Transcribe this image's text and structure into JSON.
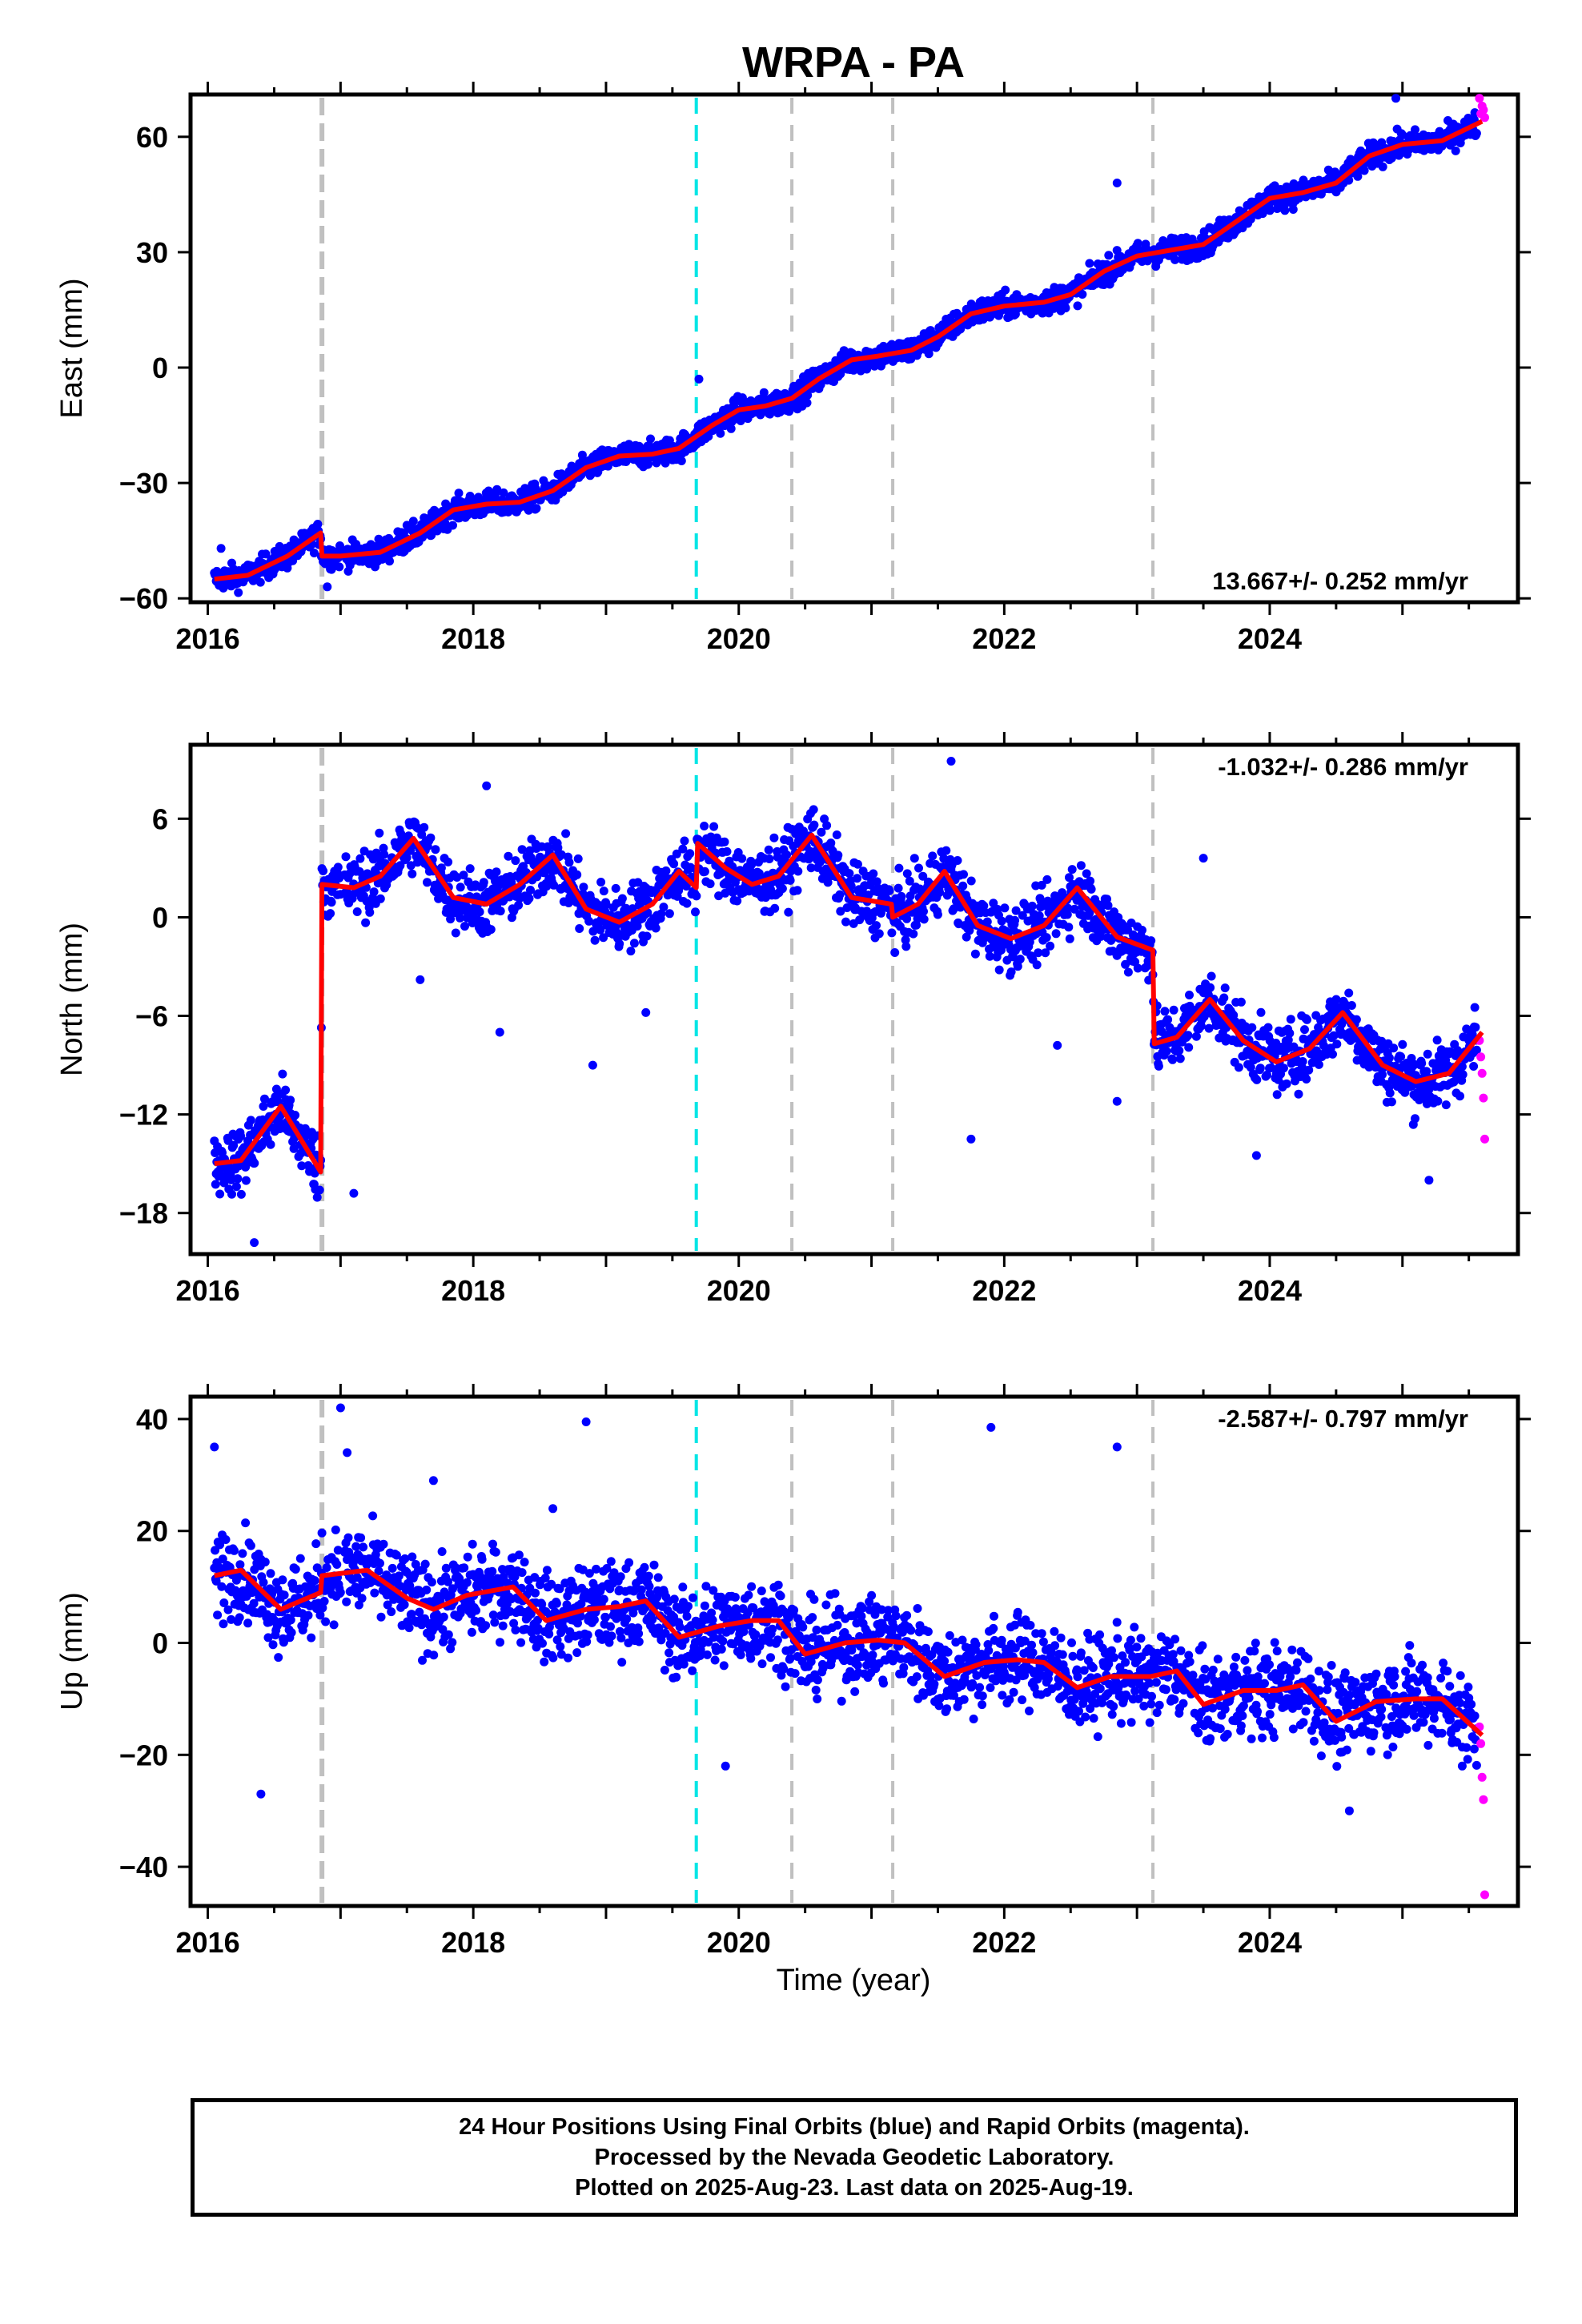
{
  "chart_data": {
    "type": "scatter",
    "title": "WRPA - PA",
    "xlabel": "Time (year)",
    "xlim": [
      2015.87,
      2025.87
    ],
    "x_ticks": [
      2016,
      2018,
      2020,
      2022,
      2024
    ],
    "x_tick_labels": [
      "2016",
      "2018",
      "2020",
      "2022",
      "2024"
    ],
    "grid": false,
    "legend": "none",
    "colors": {
      "final_orbits": "#0000ff",
      "rapid_orbits": "#ff00ff",
      "model_fit": "#ff0000",
      "equipment_change": "#c0c0c0",
      "earthquake": "#00e5e5"
    },
    "event_lines": [
      {
        "x": 2016.86,
        "color": "#c0c0c0",
        "thick": true
      },
      {
        "x": 2019.68,
        "color": "#00e5e5",
        "thick": false
      },
      {
        "x": 2020.4,
        "color": "#c0c0c0",
        "thick": false
      },
      {
        "x": 2021.16,
        "color": "#c0c0c0",
        "thick": false
      },
      {
        "x": 2023.12,
        "color": "#c0c0c0",
        "thick": false
      }
    ],
    "panels": [
      {
        "component": "east",
        "ylabel": "East (mm)",
        "ylim": [
          -61,
          71
        ],
        "y_ticks": [
          -60,
          -30,
          0,
          30,
          60
        ],
        "y_tick_labels": [
          "−60",
          "−30",
          "0",
          "30",
          "60"
        ],
        "rate_label": "13.667+/- 0.252 mm/yr",
        "rate_position": "bottom-right",
        "rate_mm_per_yr": 13.667,
        "rate_sigma_mm_per_yr": 0.252,
        "fit": [
          [
            2016.05,
            -55
          ],
          [
            2016.3,
            -54
          ],
          [
            2016.6,
            -49
          ],
          [
            2016.85,
            -43
          ],
          [
            2016.86,
            -49
          ],
          [
            2017.0,
            -49
          ],
          [
            2017.3,
            -48
          ],
          [
            2017.6,
            -43
          ],
          [
            2017.85,
            -37
          ],
          [
            2018.1,
            -35.5
          ],
          [
            2018.35,
            -35
          ],
          [
            2018.6,
            -32
          ],
          [
            2018.85,
            -26
          ],
          [
            2019.1,
            -23
          ],
          [
            2019.35,
            -22.5
          ],
          [
            2019.55,
            -21
          ],
          [
            2019.8,
            -15
          ],
          [
            2020.0,
            -11
          ],
          [
            2020.2,
            -10
          ],
          [
            2020.4,
            -8
          ],
          [
            2020.6,
            -3
          ],
          [
            2020.85,
            2
          ],
          [
            2021.05,
            3
          ],
          [
            2021.3,
            4.5
          ],
          [
            2021.5,
            8
          ],
          [
            2021.75,
            14
          ],
          [
            2022.0,
            16
          ],
          [
            2022.3,
            17
          ],
          [
            2022.5,
            19
          ],
          [
            2022.75,
            25
          ],
          [
            2023.0,
            29
          ],
          [
            2023.25,
            30.5
          ],
          [
            2023.5,
            32
          ],
          [
            2023.75,
            38
          ],
          [
            2024.0,
            44
          ],
          [
            2024.25,
            45.5
          ],
          [
            2024.5,
            48
          ],
          [
            2024.75,
            55
          ],
          [
            2025.0,
            58
          ],
          [
            2025.3,
            59
          ],
          [
            2025.6,
            64
          ]
        ],
        "final": {
          "noise": 2.3,
          "outliers": [
            [
              2016.1,
              -47
            ],
            [
              2017.5,
              -41
            ],
            [
              2019.7,
              -3
            ],
            [
              2022.85,
              48
            ],
            [
              2024.95,
              70
            ],
            [
              2016.9,
              -57
            ]
          ]
        },
        "rapid": [
          [
            2025.58,
            70
          ],
          [
            2025.59,
            66
          ],
          [
            2025.6,
            68
          ],
          [
            2025.61,
            67
          ],
          [
            2025.62,
            65
          ]
        ]
      },
      {
        "component": "north",
        "ylabel": "North (mm)",
        "ylim": [
          -20.5,
          10.5
        ],
        "y_ticks": [
          -18,
          -12,
          -6,
          0,
          6
        ],
        "y_tick_labels": [
          "−18",
          "−12",
          "−6",
          "0",
          "6"
        ],
        "rate_label": "-1.032+/- 0.286 mm/yr",
        "rate_position": "top-right",
        "rate_mm_per_yr": -1.032,
        "rate_sigma_mm_per_yr": 0.286,
        "fit": [
          [
            2016.05,
            -15
          ],
          [
            2016.25,
            -14.8
          ],
          [
            2016.55,
            -11.5
          ],
          [
            2016.85,
            -15.5
          ],
          [
            2016.86,
            2
          ],
          [
            2017.1,
            1.8
          ],
          [
            2017.3,
            2.5
          ],
          [
            2017.55,
            4.8
          ],
          [
            2017.85,
            1.2
          ],
          [
            2018.1,
            0.8
          ],
          [
            2018.35,
            2
          ],
          [
            2018.6,
            3.8
          ],
          [
            2018.85,
            0.5
          ],
          [
            2019.1,
            -0.3
          ],
          [
            2019.35,
            0.8
          ],
          [
            2019.55,
            2.8
          ],
          [
            2019.68,
            1.8
          ],
          [
            2019.69,
            4.5
          ],
          [
            2019.9,
            3
          ],
          [
            2020.1,
            2
          ],
          [
            2020.3,
            2.5
          ],
          [
            2020.55,
            5
          ],
          [
            2020.85,
            1.2
          ],
          [
            2021.15,
            0.8
          ],
          [
            2021.16,
            0
          ],
          [
            2021.35,
            0.8
          ],
          [
            2021.55,
            2.8
          ],
          [
            2021.8,
            -0.5
          ],
          [
            2022.05,
            -1.3
          ],
          [
            2022.3,
            -0.5
          ],
          [
            2022.55,
            1.8
          ],
          [
            2022.85,
            -1.2
          ],
          [
            2023.12,
            -2
          ],
          [
            2023.13,
            -7.7
          ],
          [
            2023.3,
            -7.3
          ],
          [
            2023.55,
            -5
          ],
          [
            2023.8,
            -7.5
          ],
          [
            2024.05,
            -8.8
          ],
          [
            2024.3,
            -8
          ],
          [
            2024.55,
            -5.8
          ],
          [
            2024.85,
            -9
          ],
          [
            2025.1,
            -10
          ],
          [
            2025.35,
            -9.5
          ],
          [
            2025.6,
            -7
          ]
        ],
        "final": {
          "noise": 1.4,
          "outliers": [
            [
              2016.35,
              -19.8
            ],
            [
              2017.1,
              -16.8
            ],
            [
              2018.9,
              -9
            ],
            [
              2019.3,
              -5.8
            ],
            [
              2018.1,
              8
            ],
            [
              2021.75,
              -13.5
            ],
            [
              2021.6,
              9.5
            ],
            [
              2022.4,
              -7.8
            ],
            [
              2022.85,
              -11.2
            ],
            [
              2023.5,
              3.6
            ],
            [
              2023.9,
              -14.5
            ],
            [
              2025.2,
              -16
            ],
            [
              2017.6,
              -3.8
            ],
            [
              2018.2,
              -7
            ]
          ]
        },
        "rapid": [
          [
            2025.58,
            -7.5
          ],
          [
            2025.59,
            -8.5
          ],
          [
            2025.6,
            -9.5
          ],
          [
            2025.61,
            -11
          ],
          [
            2025.62,
            -13.5
          ]
        ]
      },
      {
        "component": "up",
        "ylabel": "Up (mm)",
        "ylim": [
          -47,
          44
        ],
        "y_ticks": [
          -40,
          -20,
          0,
          20,
          40
        ],
        "y_tick_labels": [
          "−40",
          "−20",
          "0",
          "20",
          "40"
        ],
        "rate_label": "-2.587+/- 0.797 mm/yr",
        "rate_position": "top-right",
        "rate_mm_per_yr": -2.587,
        "rate_sigma_mm_per_yr": 0.797,
        "fit": [
          [
            2016.05,
            12
          ],
          [
            2016.25,
            13
          ],
          [
            2016.55,
            6
          ],
          [
            2016.85,
            9
          ],
          [
            2016.86,
            12
          ],
          [
            2017.2,
            13
          ],
          [
            2017.5,
            8
          ],
          [
            2017.7,
            6
          ],
          [
            2017.95,
            8.5
          ],
          [
            2018.3,
            10
          ],
          [
            2018.55,
            4
          ],
          [
            2018.85,
            6
          ],
          [
            2019.1,
            6.5
          ],
          [
            2019.3,
            7.5
          ],
          [
            2019.55,
            1
          ],
          [
            2019.85,
            3
          ],
          [
            2020.1,
            4
          ],
          [
            2020.3,
            4
          ],
          [
            2020.5,
            -2
          ],
          [
            2020.8,
            0
          ],
          [
            2021.05,
            0.5
          ],
          [
            2021.25,
            0
          ],
          [
            2021.55,
            -6
          ],
          [
            2021.85,
            -3.5
          ],
          [
            2022.1,
            -3
          ],
          [
            2022.3,
            -3.5
          ],
          [
            2022.55,
            -8
          ],
          [
            2022.8,
            -6
          ],
          [
            2023.1,
            -6
          ],
          [
            2023.3,
            -5
          ],
          [
            2023.5,
            -11
          ],
          [
            2023.8,
            -8.5
          ],
          [
            2024.05,
            -8.5
          ],
          [
            2024.25,
            -7.5
          ],
          [
            2024.5,
            -14
          ],
          [
            2024.8,
            -10.5
          ],
          [
            2025.1,
            -10
          ],
          [
            2025.3,
            -10
          ],
          [
            2025.6,
            -16.5
          ]
        ],
        "final": {
          "noise": 5.5,
          "outliers": [
            [
              2016.05,
              35
            ],
            [
              2017.0,
              42
            ],
            [
              2017.05,
              34
            ],
            [
              2018.85,
              39.5
            ],
            [
              2021.9,
              38.5
            ],
            [
              2022.85,
              35
            ],
            [
              2016.4,
              -27
            ],
            [
              2019.9,
              -22
            ],
            [
              2024.6,
              -30
            ],
            [
              2025.45,
              -22
            ],
            [
              2017.7,
              29
            ],
            [
              2018.6,
              24
            ]
          ]
        },
        "rapid": [
          [
            2025.58,
            -15
          ],
          [
            2025.59,
            -18
          ],
          [
            2025.6,
            -24
          ],
          [
            2025.61,
            -28
          ],
          [
            2025.62,
            -45
          ]
        ]
      }
    ]
  },
  "footer": {
    "line1": "24 Hour Positions Using Final Orbits (blue) and Rapid Orbits (magenta).",
    "line2": "Processed by the Nevada Geodetic Laboratory.",
    "line3": "Plotted on 2025-Aug-23. Last data on 2025-Aug-19."
  }
}
